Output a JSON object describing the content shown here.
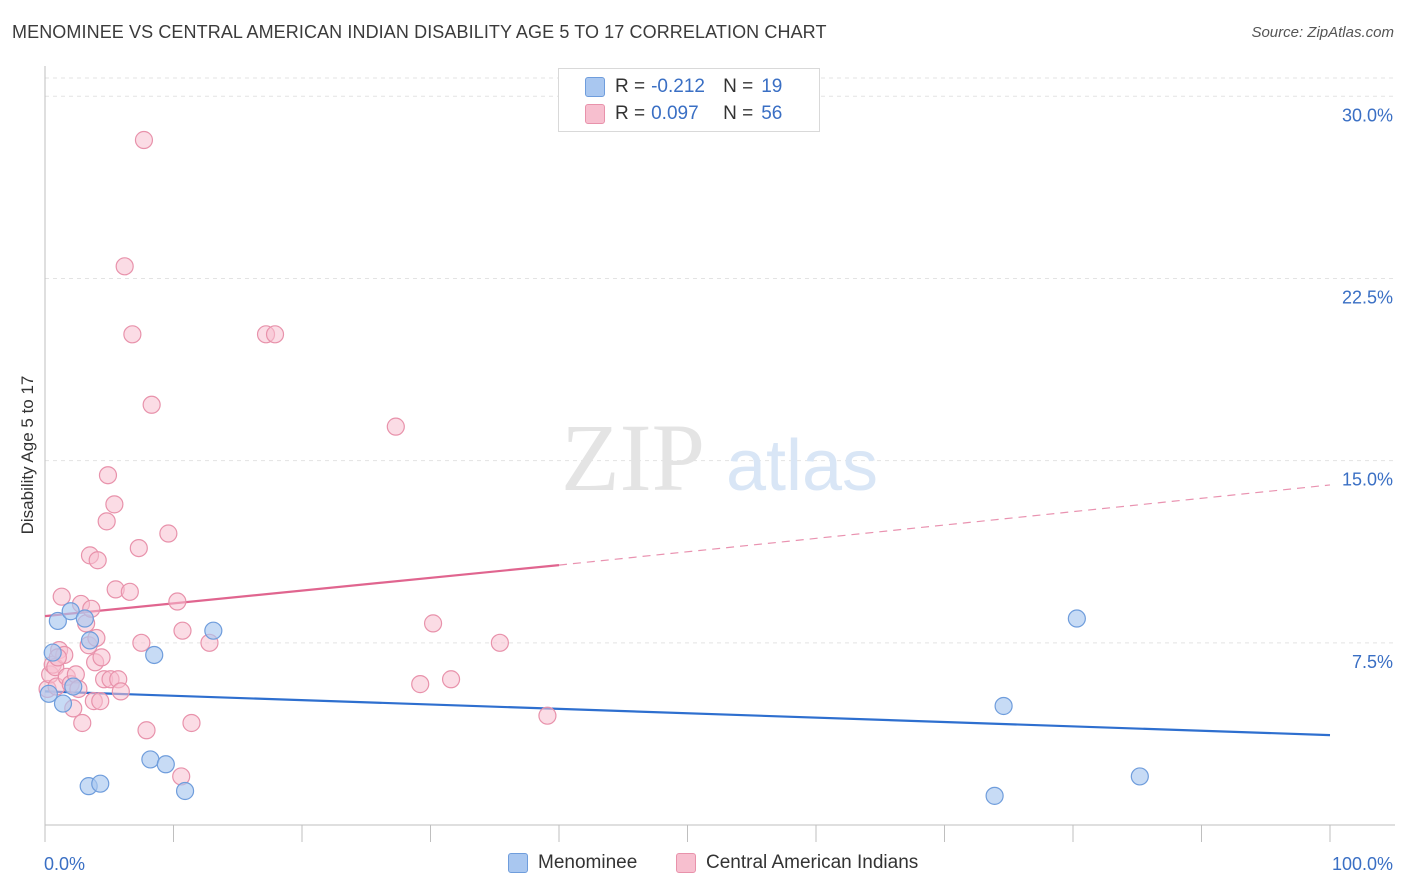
{
  "header": {
    "title": "MENOMINEE VS CENTRAL AMERICAN INDIAN DISABILITY AGE 5 TO 17 CORRELATION CHART",
    "source": "Source: ZipAtlas.com"
  },
  "watermark": {
    "zip": "ZIP",
    "atlas": "atlas"
  },
  "legend": {
    "rows": [
      {
        "r_label": "R =",
        "r_value": "-0.212",
        "n_label": "N =",
        "n_value": "19",
        "color": "#a9c7f0",
        "border": "#6f9ddc"
      },
      {
        "r_label": "R =",
        "r_value": "0.097",
        "n_label": "N =",
        "n_value": "56",
        "color": "#f7bfcf",
        "border": "#e892ab"
      }
    ]
  },
  "bottom_legend": {
    "menominee": "Menominee",
    "central": "Central American Indians"
  },
  "colors": {
    "blue_fill": "#a9c7f0",
    "blue_stroke": "#6f9ddc",
    "blue_line": "#2e6fcf",
    "pink_fill": "#f7bfcf",
    "pink_stroke": "#e892ab",
    "pink_line": "#e0658f",
    "tick_text": "#3a6fc4"
  },
  "chart_data": {
    "type": "scatter",
    "title": "MENOMINEE VS CENTRAL AMERICAN INDIAN DISABILITY AGE 5 TO 17 CORRELATION CHART",
    "xlabel": "",
    "ylabel": "Disability Age 5 to 17",
    "xlim": [
      0,
      100
    ],
    "ylim": [
      0,
      31
    ],
    "x_tick_labels": [
      "0.0%",
      "100.0%"
    ],
    "y_ticks": [
      7.5,
      15.0,
      22.5,
      30.0
    ],
    "y_tick_labels": [
      "7.5%",
      "15.0%",
      "22.5%",
      "30.0%"
    ],
    "grid": "horizontal dashed",
    "legend_position": "top-center",
    "series": [
      {
        "name": "Menominee",
        "points": [
          [
            0.3,
            5.4
          ],
          [
            0.6,
            7.1
          ],
          [
            1.0,
            8.4
          ],
          [
            1.4,
            5.0
          ],
          [
            2.0,
            8.8
          ],
          [
            2.2,
            5.7
          ],
          [
            3.1,
            8.5
          ],
          [
            3.4,
            1.6
          ],
          [
            3.5,
            7.6
          ],
          [
            4.3,
            1.7
          ],
          [
            8.2,
            2.7
          ],
          [
            8.5,
            7.0
          ],
          [
            9.4,
            2.5
          ],
          [
            10.9,
            1.4
          ],
          [
            13.1,
            8.0
          ],
          [
            74.6,
            4.9
          ],
          [
            80.3,
            8.5
          ],
          [
            85.2,
            2.0
          ],
          [
            73.9,
            1.2
          ]
        ],
        "trend": {
          "x0": 0,
          "y0": 5.5,
          "x1": 100,
          "y1": 3.7
        }
      },
      {
        "name": "Central American Indians",
        "points": [
          [
            0.2,
            5.6
          ],
          [
            0.4,
            6.2
          ],
          [
            0.6,
            6.6
          ],
          [
            0.8,
            6.5
          ],
          [
            0.9,
            5.7
          ],
          [
            1.1,
            7.2
          ],
          [
            1.3,
            9.4
          ],
          [
            1.5,
            7.0
          ],
          [
            1.7,
            6.1
          ],
          [
            2.0,
            5.8
          ],
          [
            2.2,
            4.8
          ],
          [
            2.4,
            6.2
          ],
          [
            2.6,
            5.6
          ],
          [
            2.8,
            9.1
          ],
          [
            2.9,
            4.2
          ],
          [
            3.2,
            8.3
          ],
          [
            3.4,
            7.4
          ],
          [
            3.5,
            11.1
          ],
          [
            3.6,
            8.9
          ],
          [
            3.8,
            5.1
          ],
          [
            3.9,
            6.7
          ],
          [
            4.0,
            7.7
          ],
          [
            4.1,
            10.9
          ],
          [
            4.3,
            5.1
          ],
          [
            4.4,
            6.9
          ],
          [
            4.6,
            6.0
          ],
          [
            4.8,
            12.5
          ],
          [
            4.9,
            14.4
          ],
          [
            5.1,
            6.0
          ],
          [
            5.4,
            13.2
          ],
          [
            5.5,
            9.7
          ],
          [
            5.7,
            6.0
          ],
          [
            5.9,
            5.5
          ],
          [
            6.2,
            23.0
          ],
          [
            6.6,
            9.6
          ],
          [
            6.8,
            20.2
          ],
          [
            7.3,
            11.4
          ],
          [
            7.5,
            7.5
          ],
          [
            7.7,
            28.2
          ],
          [
            7.9,
            3.9
          ],
          [
            8.3,
            17.3
          ],
          [
            9.6,
            12.0
          ],
          [
            10.3,
            9.2
          ],
          [
            10.6,
            2.0
          ],
          [
            10.7,
            8.0
          ],
          [
            11.4,
            4.2
          ],
          [
            12.8,
            7.5
          ],
          [
            17.2,
            20.2
          ],
          [
            17.9,
            20.2
          ],
          [
            27.3,
            16.4
          ],
          [
            29.2,
            5.8
          ],
          [
            30.2,
            8.3
          ],
          [
            31.6,
            6.0
          ],
          [
            35.4,
            7.5
          ],
          [
            39.1,
            4.5
          ],
          [
            1.0,
            6.9
          ]
        ],
        "trend": {
          "x0": 0,
          "y0": 8.6,
          "x1": 40,
          "y1": 10.7,
          "dash_to_x": 100,
          "dash_to_y": 14.0
        }
      }
    ]
  }
}
